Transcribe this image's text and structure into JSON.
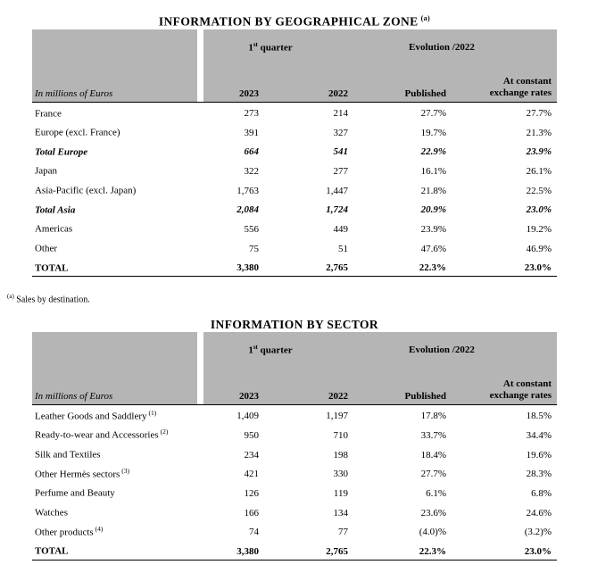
{
  "geo_section": {
    "title": "INFORMATION BY GEOGRAPHICAL ZONE",
    "title_sup": "(a)",
    "footnote_sup": "(a)",
    "footnote_text": "Sales by destination."
  },
  "sector_section": {
    "title": "INFORMATION BY SECTOR"
  },
  "table_header": {
    "quarter_num": "1",
    "quarter_sup": "st",
    "quarter_rest": " quarter",
    "evolution": "Evolution /2022",
    "unit_label": "In millions of Euros",
    "col_2023": "2023",
    "col_2022": "2022",
    "col_published": "Published",
    "col_constant": "At constant\nexchange rates"
  },
  "geo_table": {
    "rows": [
      {
        "label": "France",
        "marker": "",
        "y2023": "273",
        "y2022": "214",
        "published": "27.7%",
        "constant": "27.7%",
        "style": "normal"
      },
      {
        "label": "Europe (excl. France)",
        "marker": "",
        "y2023": "391",
        "y2022": "327",
        "published": "19.7%",
        "constant": "21.3%",
        "style": "normal"
      },
      {
        "label": "Total Europe",
        "marker": "",
        "y2023": "664",
        "y2022": "541",
        "published": "22.9%",
        "constant": "23.9%",
        "style": "bold-italic"
      },
      {
        "label": "Japan",
        "marker": "",
        "y2023": "322",
        "y2022": "277",
        "published": "16.1%",
        "constant": "26.1%",
        "style": "normal"
      },
      {
        "label": "Asia-Pacific (excl. Japan)",
        "marker": "",
        "y2023": "1,763",
        "y2022": "1,447",
        "published": "21.8%",
        "constant": "22.5%",
        "style": "normal"
      },
      {
        "label": "Total Asia",
        "marker": "",
        "y2023": "2,084",
        "y2022": "1,724",
        "published": "20.9%",
        "constant": "23.0%",
        "style": "bold-italic"
      },
      {
        "label": "Americas",
        "marker": "",
        "y2023": "556",
        "y2022": "449",
        "published": "23.9%",
        "constant": "19.2%",
        "style": "normal"
      },
      {
        "label": "Other",
        "marker": "",
        "y2023": "75",
        "y2022": "51",
        "published": "47.6%",
        "constant": "46.9%",
        "style": "normal"
      },
      {
        "label": "TOTAL",
        "marker": "",
        "y2023": "3,380",
        "y2022": "2,765",
        "published": "22.3%",
        "constant": "23.0%",
        "style": "bold"
      }
    ]
  },
  "sector_table": {
    "rows": [
      {
        "label": "Leather Goods and Saddlery",
        "marker": "(1)",
        "y2023": "1,409",
        "y2022": "1,197",
        "published": "17.8%",
        "constant": "18.5%",
        "style": "normal"
      },
      {
        "label": "Ready-to-wear and Accessories",
        "marker": "(2)",
        "y2023": "950",
        "y2022": "710",
        "published": "33.7%",
        "constant": "34.4%",
        "style": "normal"
      },
      {
        "label": "Silk and Textiles",
        "marker": "",
        "y2023": "234",
        "y2022": "198",
        "published": "18.4%",
        "constant": "19.6%",
        "style": "normal"
      },
      {
        "label": "Other Hermès sectors",
        "marker": "(3)",
        "y2023": "421",
        "y2022": "330",
        "published": "27.7%",
        "constant": "28.3%",
        "style": "normal"
      },
      {
        "label": "Perfume and Beauty",
        "marker": "",
        "y2023": "126",
        "y2022": "119",
        "published": "6.1%",
        "constant": "6.8%",
        "style": "normal"
      },
      {
        "label": "Watches",
        "marker": "",
        "y2023": "166",
        "y2022": "134",
        "published": "23.6%",
        "constant": "24.6%",
        "style": "normal"
      },
      {
        "label": "Other products",
        "marker": "(4)",
        "y2023": "74",
        "y2022": "77",
        "published": "(4.0)%",
        "constant": "(3.2)%",
        "style": "normal"
      },
      {
        "label": "TOTAL",
        "marker": "",
        "y2023": "3,380",
        "y2022": "2,765",
        "published": "22.3%",
        "constant": "23.0%",
        "style": "bold"
      }
    ]
  }
}
